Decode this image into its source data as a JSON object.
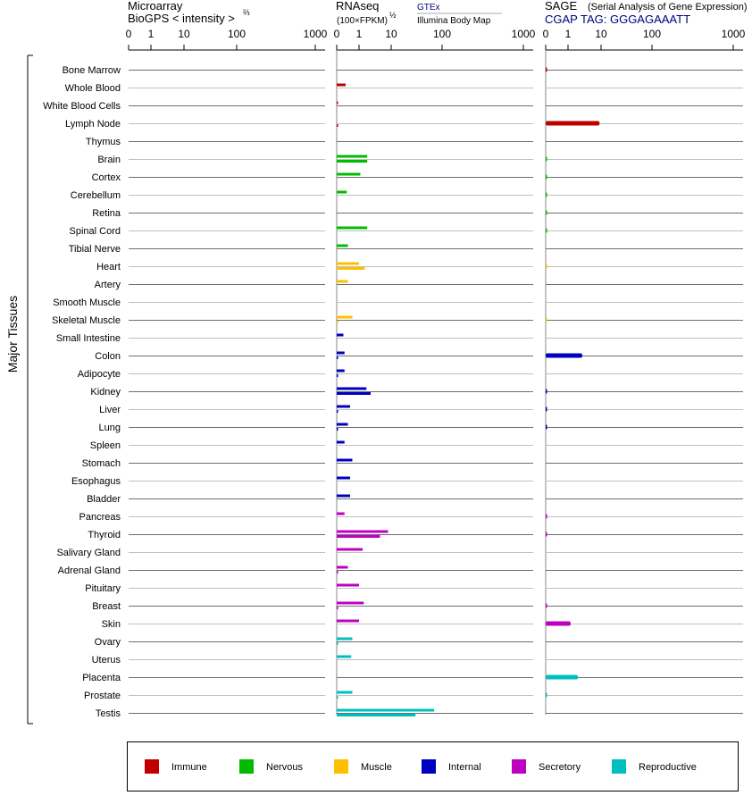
{
  "colors": {
    "Immune": "#c00000",
    "Nervous": "#00bb00",
    "Muscle": "#ffbf00",
    "Internal": "#0000c0",
    "Secretory": "#c000c0",
    "Reproductive": "#00bfbf"
  },
  "side_label": "Major Tissues",
  "legend": [
    "Immune",
    "Nervous",
    "Muscle",
    "Internal",
    "Secretory",
    "Reproductive"
  ],
  "panels": [
    {
      "id": "microarray",
      "title1": "Microarray",
      "title2": "BioGPS  < intensity >",
      "title2_sup": "⅔",
      "tick_labels": [
        "0",
        "1",
        "10",
        "100",
        "1000"
      ]
    },
    {
      "id": "rnaseq",
      "title1": "RNAseq",
      "title2": "(100×FPKM)",
      "title2_sup": "½",
      "src1": "GTEx",
      "src2": "Illumina Body Map",
      "tick_labels": [
        "0",
        "1",
        "10",
        "100",
        "1000"
      ]
    },
    {
      "id": "sage",
      "title1": "SAGE",
      "title1_note": "(Serial Analysis of Gene Expression)",
      "title2": "CGAP TAG: GGGAGAAATT",
      "tick_labels": [
        "0",
        "1",
        "10",
        "100",
        "1000"
      ]
    }
  ],
  "chart_data": {
    "type": "bar",
    "orientation": "horizontal",
    "x_scale": "custom (0, 1, 10, 100, 1000 tick labels)",
    "xlim": [
      0,
      1000
    ],
    "grid": true,
    "legend_placement": "bottom",
    "tissues": [
      {
        "name": "Bone Marrow",
        "system": "Immune",
        "microarray": null,
        "gtex": null,
        "ibm": null,
        "sage": 0.02
      },
      {
        "name": "Whole Blood",
        "system": "Immune",
        "microarray": null,
        "gtex": 0.4,
        "ibm": null,
        "sage": null
      },
      {
        "name": "White Blood Cells",
        "system": "Immune",
        "microarray": null,
        "gtex": 0.02,
        "ibm": null,
        "sage": null
      },
      {
        "name": "Lymph Node",
        "system": "Immune",
        "microarray": null,
        "gtex": null,
        "ibm": 0.02,
        "sage": 9
      },
      {
        "name": "Thymus",
        "system": "Immune",
        "microarray": null,
        "gtex": null,
        "ibm": null,
        "sage": null
      },
      {
        "name": "Brain",
        "system": "Nervous",
        "microarray": null,
        "gtex": 1.8,
        "ibm": 1.8,
        "sage": 0.02
      },
      {
        "name": "Cortex",
        "system": "Nervous",
        "microarray": null,
        "gtex": 1.1,
        "ibm": null,
        "sage": 0.02
      },
      {
        "name": "Cerebellum",
        "system": "Nervous",
        "microarray": null,
        "gtex": 0.45,
        "ibm": null,
        "sage": 0.02
      },
      {
        "name": "Retina",
        "system": "Nervous",
        "microarray": null,
        "gtex": null,
        "ibm": null,
        "sage": 0.02
      },
      {
        "name": "Spinal Cord",
        "system": "Nervous",
        "microarray": null,
        "gtex": 1.8,
        "ibm": null,
        "sage": 0.02
      },
      {
        "name": "Tibial Nerve",
        "system": "Nervous",
        "microarray": null,
        "gtex": 0.5,
        "ibm": null,
        "sage": null
      },
      {
        "name": "Heart",
        "system": "Muscle",
        "microarray": null,
        "gtex": 1.0,
        "ibm": 1.5,
        "sage": 0.01
      },
      {
        "name": "Artery",
        "system": "Muscle",
        "microarray": null,
        "gtex": 0.5,
        "ibm": null,
        "sage": null
      },
      {
        "name": "Smooth Muscle",
        "system": "Muscle",
        "microarray": null,
        "gtex": null,
        "ibm": null,
        "sage": null
      },
      {
        "name": "Skeletal Muscle",
        "system": "Muscle",
        "microarray": null,
        "gtex": 0.7,
        "ibm": 0.02,
        "sage": 0.01
      },
      {
        "name": "Small Intestine",
        "system": "Internal",
        "microarray": null,
        "gtex": 0.3,
        "ibm": null,
        "sage": null
      },
      {
        "name": "Colon",
        "system": "Internal",
        "microarray": null,
        "gtex": 0.35,
        "ibm": 0.02,
        "sage": 2.7
      },
      {
        "name": "Adipocyte",
        "system": "Internal",
        "microarray": null,
        "gtex": 0.35,
        "ibm": 0.03,
        "sage": null
      },
      {
        "name": "Kidney",
        "system": "Internal",
        "microarray": null,
        "gtex": 1.7,
        "ibm": 2.3,
        "sage": 0.03
      },
      {
        "name": "Liver",
        "system": "Internal",
        "microarray": null,
        "gtex": 0.6,
        "ibm": 0.02,
        "sage": 0.03
      },
      {
        "name": "Lung",
        "system": "Internal",
        "microarray": null,
        "gtex": 0.5,
        "ibm": 0.02,
        "sage": 0.03
      },
      {
        "name": "Spleen",
        "system": "Internal",
        "microarray": null,
        "gtex": 0.35,
        "ibm": null,
        "sage": null
      },
      {
        "name": "Stomach",
        "system": "Internal",
        "microarray": null,
        "gtex": 0.7,
        "ibm": null,
        "sage": null
      },
      {
        "name": "Esophagus",
        "system": "Internal",
        "microarray": null,
        "gtex": 0.6,
        "ibm": null,
        "sage": null
      },
      {
        "name": "Bladder",
        "system": "Internal",
        "microarray": null,
        "gtex": 0.6,
        "ibm": null,
        "sage": null
      },
      {
        "name": "Pancreas",
        "system": "Secretory",
        "microarray": null,
        "gtex": 0.35,
        "ibm": null,
        "sage": 0.02
      },
      {
        "name": "Thyroid",
        "system": "Secretory",
        "microarray": null,
        "gtex": 8,
        "ibm": 4.5,
        "sage": 0.02
      },
      {
        "name": "Salivary Gland",
        "system": "Secretory",
        "microarray": null,
        "gtex": 1.3,
        "ibm": null,
        "sage": null
      },
      {
        "name": "Adrenal Gland",
        "system": "Secretory",
        "microarray": null,
        "gtex": 0.5,
        "ibm": 0.02,
        "sage": null
      },
      {
        "name": "Pituitary",
        "system": "Secretory",
        "microarray": null,
        "gtex": 1.0,
        "ibm": null,
        "sage": null
      },
      {
        "name": "Breast",
        "system": "Secretory",
        "microarray": null,
        "gtex": 1.4,
        "ibm": 0.02,
        "sage": 0.02
      },
      {
        "name": "Skin",
        "system": "Secretory",
        "microarray": null,
        "gtex": 1.0,
        "ibm": null,
        "sage": 1.2
      },
      {
        "name": "Ovary",
        "system": "Reproductive",
        "microarray": null,
        "gtex": 0.7,
        "ibm": 0.02,
        "sage": null
      },
      {
        "name": "Uterus",
        "system": "Reproductive",
        "microarray": null,
        "gtex": 0.65,
        "ibm": null,
        "sage": null
      },
      {
        "name": "Placenta",
        "system": "Reproductive",
        "microarray": null,
        "gtex": null,
        "ibm": null,
        "sage": 2.0
      },
      {
        "name": "Prostate",
        "system": "Reproductive",
        "microarray": null,
        "gtex": 0.7,
        "ibm": 0.02,
        "sage": 0.01
      },
      {
        "name": "Testis",
        "system": "Reproductive",
        "microarray": null,
        "gtex": 70,
        "ibm": 30,
        "sage": null
      }
    ]
  }
}
